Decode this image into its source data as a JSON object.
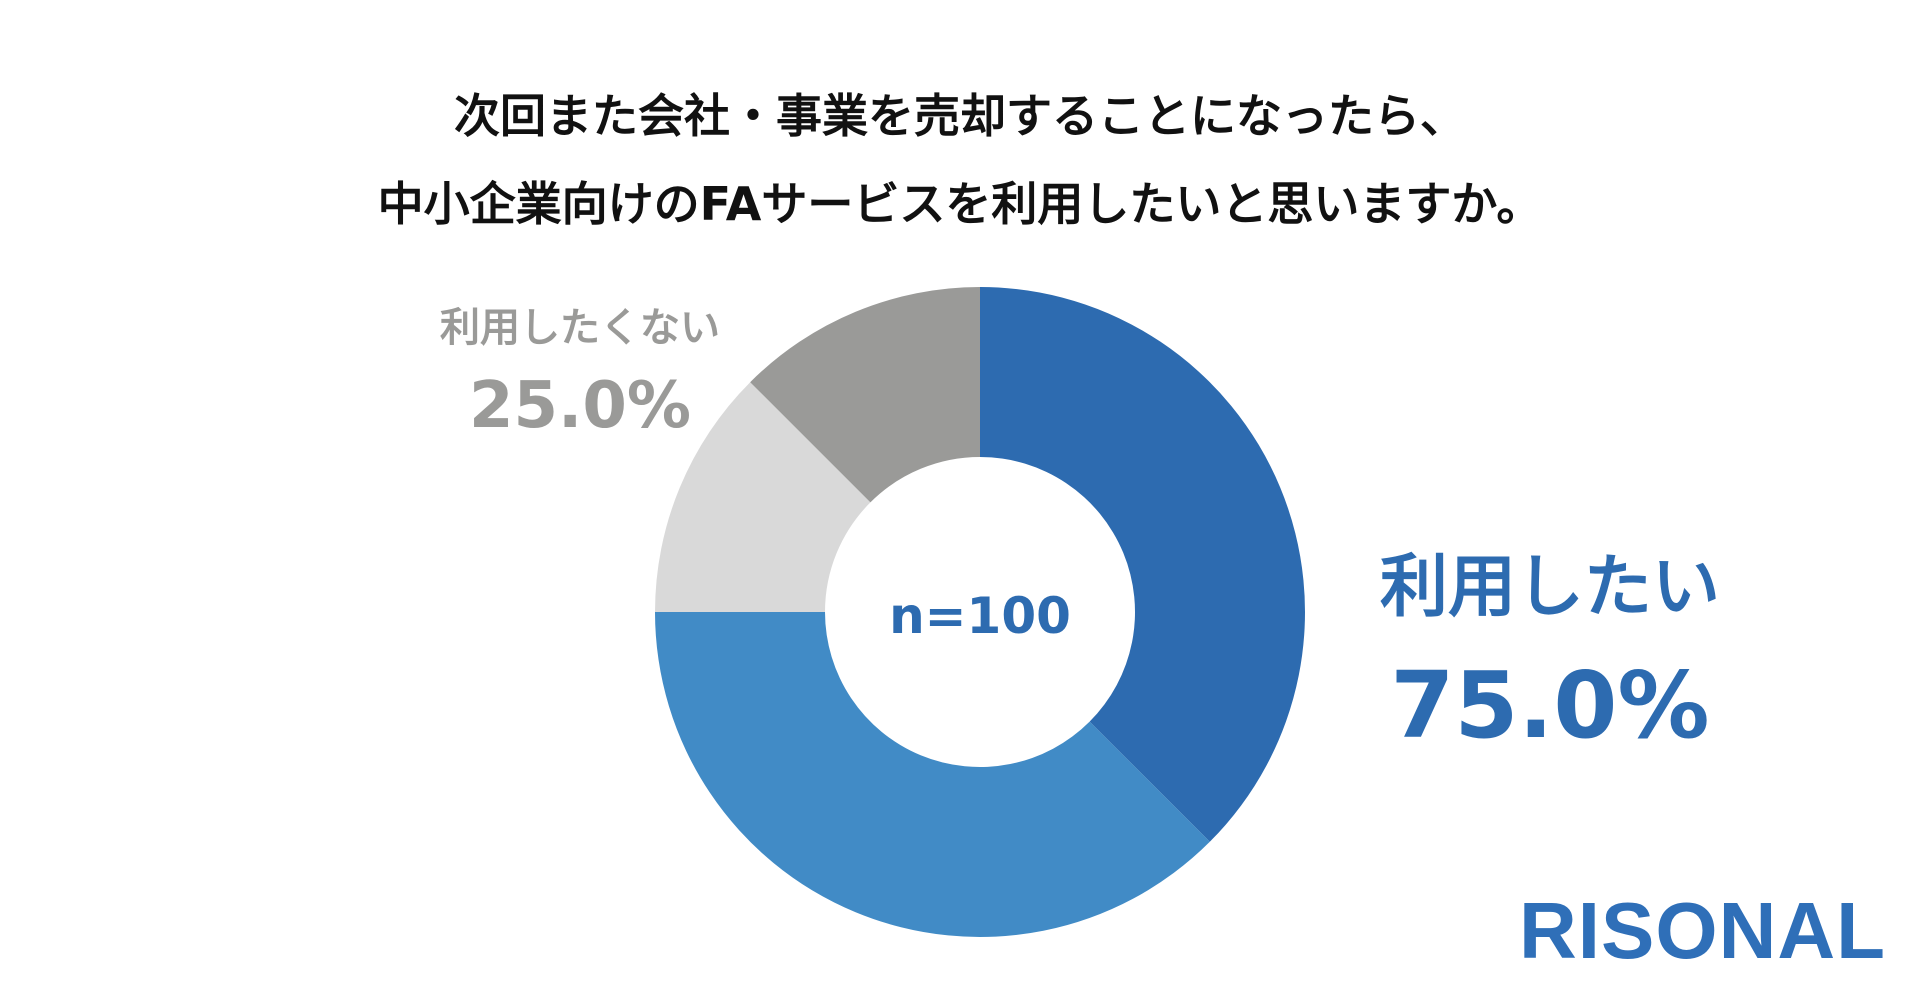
{
  "title": {
    "line1": "次回また会社・事業を売却することになったら、",
    "line2": "中小企業向けのFAサービスを利用したいと思いますか。"
  },
  "center_label": "n=100",
  "brand": "RISONAL",
  "colors": {
    "yes_label": "#2d6bb0",
    "no_label": "#9a9a98"
  },
  "chart_data": {
    "type": "pie",
    "title": "次回また会社・事業を売却することになったら、中小企業向けのFAサービスを利用したいと思いますか。",
    "categories": [
      "利用したい",
      "利用したくない"
    ],
    "values": [
      75.0,
      25.0
    ],
    "value_labels": [
      "75.0%",
      "25.0%"
    ],
    "segments": [
      {
        "value": 37.5,
        "color": "#2d6bb0"
      },
      {
        "value": 37.5,
        "color": "#418bc6"
      },
      {
        "value": 12.5,
        "color": "#d9d9d9"
      },
      {
        "value": 12.5,
        "color": "#9a9a98"
      }
    ]
  }
}
